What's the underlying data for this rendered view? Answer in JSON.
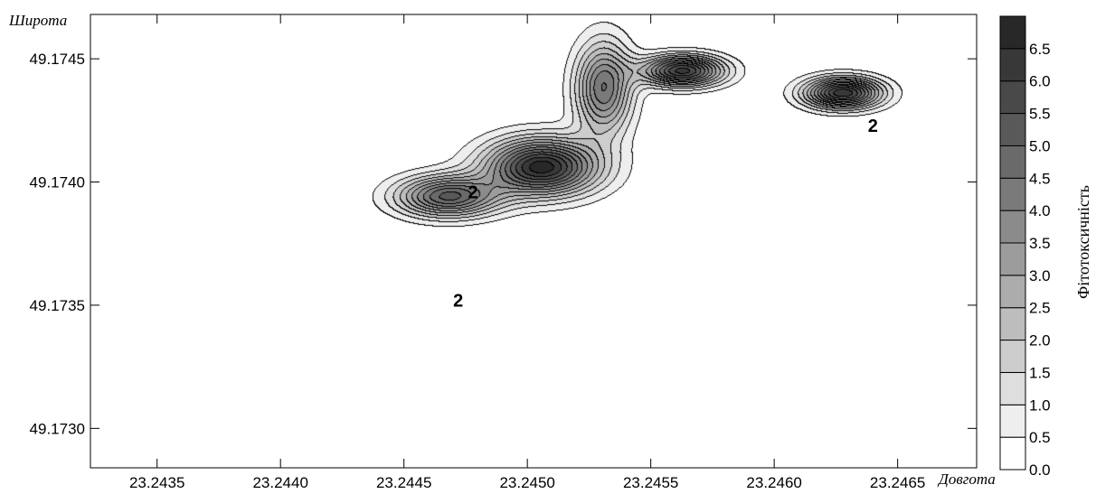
{
  "chart_data": {
    "type": "contour",
    "xlabel": "Довгота",
    "ylabel": "Широта",
    "colorbar_label": "Фітотоксичність",
    "xlim": [
      23.24323,
      23.24682
    ],
    "ylim": [
      49.17284,
      49.17468
    ],
    "x_ticks": [
      "23.2435",
      "23.2440",
      "23.2445",
      "23.2450",
      "23.2455",
      "23.2460",
      "23.2465"
    ],
    "x_tick_values": [
      23.2435,
      23.244,
      23.2445,
      23.245,
      23.2455,
      23.246,
      23.2465
    ],
    "y_ticks": [
      "49.1745",
      "49.1740",
      "49.1735",
      "49.1730"
    ],
    "y_tick_values": [
      49.1745,
      49.174,
      49.1735,
      49.173
    ],
    "contour_levels": [
      "0.0",
      "0.5",
      "1.0",
      "1.5",
      "2.0",
      "2.5",
      "3.0",
      "3.5",
      "4.0",
      "4.5",
      "5.0",
      "5.5",
      "6.0",
      "6.5"
    ],
    "contour_level_values": [
      0.0,
      0.5,
      1.0,
      1.5,
      2.0,
      2.5,
      3.0,
      3.5,
      4.0,
      4.5,
      5.0,
      5.5,
      6.0,
      6.5
    ],
    "contour_line_labels": [
      "2",
      "2",
      "2"
    ],
    "contour_line_label_positions": [
      [
        23.24478,
        49.17396
      ],
      [
        23.24472,
        49.17352
      ],
      [
        23.2464,
        49.17423
      ]
    ],
    "peaks": [
      {
        "x": 23.24506,
        "y": 49.17406,
        "value": 6.8,
        "spread": [
          0.00022,
          0.00011
        ]
      },
      {
        "x": 23.24468,
        "y": 49.17394,
        "value": 5.1,
        "spread": [
          0.0002,
          8e-05
        ]
      },
      {
        "x": 23.24531,
        "y": 49.17438,
        "value": 4.5,
        "spread": [
          0.00011,
          0.00018
        ]
      },
      {
        "x": 23.24563,
        "y": 49.17445,
        "value": 6.2,
        "spread": [
          0.00016,
          6e-05
        ]
      },
      {
        "x": 23.24628,
        "y": 49.17436,
        "value": 6.4,
        "spread": [
          0.00015,
          6e-05
        ]
      }
    ],
    "grid": false,
    "colorbar_position": "right"
  }
}
